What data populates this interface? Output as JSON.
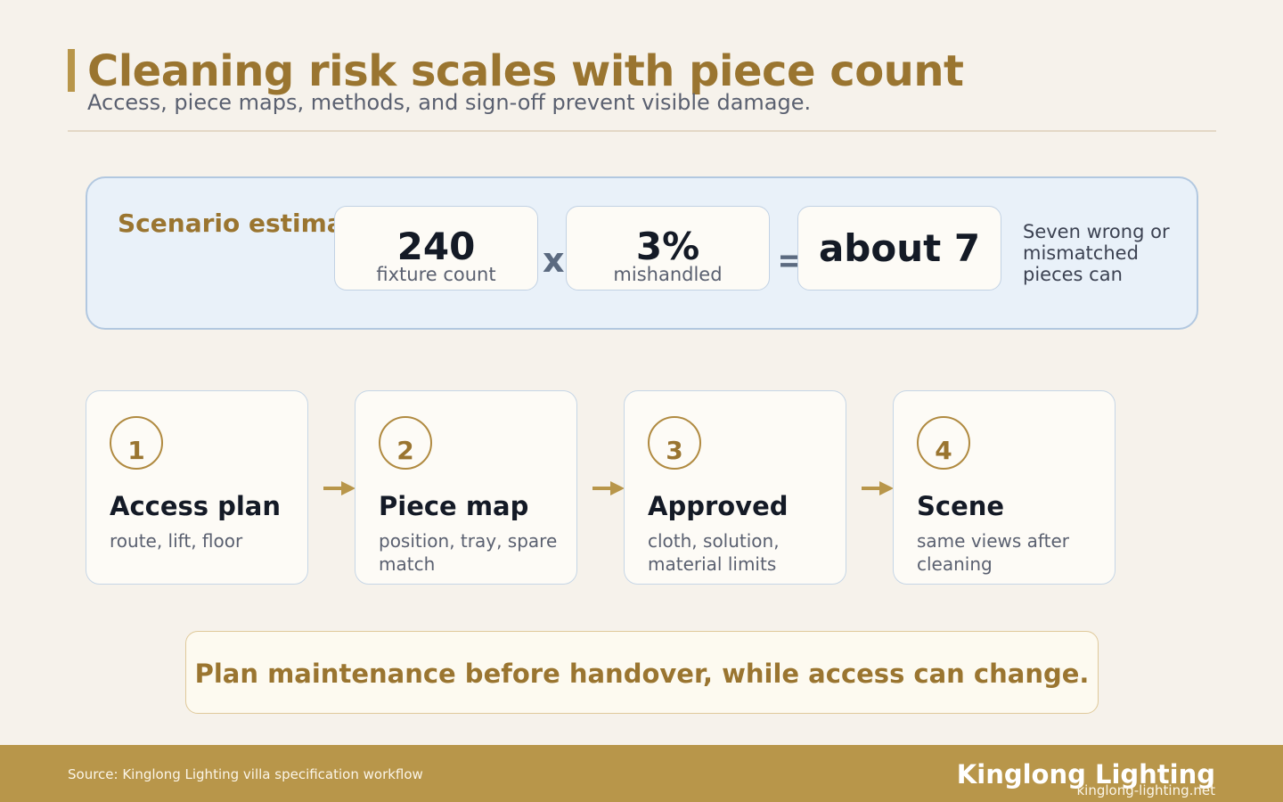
{
  "header": {
    "title": "Cleaning risk scales with piece count",
    "subtitle": "Access, piece maps, methods, and sign-off prevent visible damage."
  },
  "scenario": {
    "label": "Scenario estimate",
    "fixture": {
      "value": "240",
      "caption": "fixture count"
    },
    "operator_multiply": "x",
    "rate": {
      "value": "3%",
      "caption": "mishandled"
    },
    "operator_equals": "=",
    "result": {
      "value": "about 7"
    },
    "note": "Seven wrong or mismatched pieces can"
  },
  "steps": [
    {
      "number": "1",
      "title": "Access plan",
      "desc": "route, lift, floor"
    },
    {
      "number": "2",
      "title": "Piece map",
      "desc": "position, tray, spare match"
    },
    {
      "number": "3",
      "title": "Approved",
      "desc": "cloth, solution, material limits"
    },
    {
      "number": "4",
      "title": "Scene",
      "desc": "same views after cleaning"
    }
  ],
  "callout": {
    "text": "Plan maintenance before handover, while access can change."
  },
  "footer": {
    "source": "Source: Kinglong Lighting villa specification workflow",
    "brand": "Kinglong Lighting",
    "url": "kinglong-lighting.net"
  },
  "colors": {
    "accent": "#b8964a",
    "title": "#9a7530",
    "background": "#f6f2eb",
    "panel": "#e9f1f9"
  }
}
